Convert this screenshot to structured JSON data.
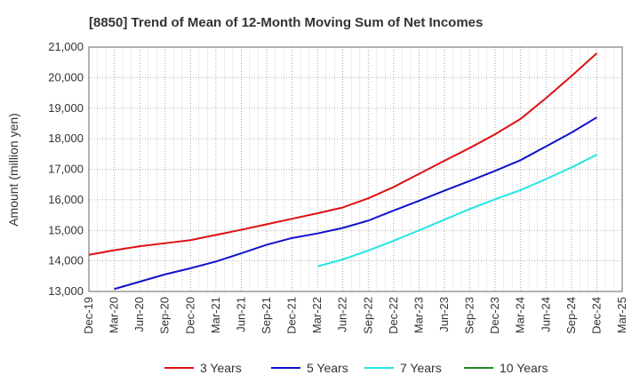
{
  "chart_data": {
    "type": "line",
    "title": "[8850]  Trend of Mean of 12-Month Moving Sum of Net Incomes",
    "xlabel": "",
    "ylabel": "Amount (million yen)",
    "ylim": [
      13000,
      21000
    ],
    "yticks": [
      13000,
      14000,
      15000,
      16000,
      17000,
      18000,
      19000,
      20000,
      21000
    ],
    "ytick_labels": [
      "13,000",
      "14,000",
      "15,000",
      "16,000",
      "17,000",
      "18,000",
      "19,000",
      "20,000",
      "21,000"
    ],
    "x_ticks": [
      "Dec-19",
      "Mar-20",
      "Jun-20",
      "Sep-20",
      "Dec-20",
      "Mar-21",
      "Jun-21",
      "Sep-21",
      "Dec-21",
      "Mar-22",
      "Jun-22",
      "Sep-22",
      "Dec-22",
      "Mar-23",
      "Jun-23",
      "Sep-23",
      "Dec-23",
      "Mar-24",
      "Jun-24",
      "Sep-24",
      "Dec-24",
      "Mar-25"
    ],
    "grid": true,
    "legend_position": "bottom",
    "series": [
      {
        "name": "3 Years",
        "color": "#dd1111",
        "points": [
          [
            "Dec-19",
            14200
          ],
          [
            "Mar-20",
            14350
          ],
          [
            "Jun-20",
            14480
          ],
          [
            "Sep-20",
            14580
          ],
          [
            "Dec-20",
            14680
          ],
          [
            "Mar-21",
            14850
          ],
          [
            "Jun-21",
            15020
          ],
          [
            "Sep-21",
            15200
          ],
          [
            "Dec-21",
            15380
          ],
          [
            "Mar-22",
            15560
          ],
          [
            "Jun-22",
            15750
          ],
          [
            "Sep-22",
            16050
          ],
          [
            "Dec-22",
            16420
          ],
          [
            "Mar-23",
            16850
          ],
          [
            "Jun-23",
            17280
          ],
          [
            "Sep-23",
            17700
          ],
          [
            "Dec-23",
            18150
          ],
          [
            "Mar-24",
            18650
          ],
          [
            "Jun-24",
            19330
          ],
          [
            "Sep-24",
            20050
          ],
          [
            "Dec-24",
            20800
          ]
        ]
      },
      {
        "name": "5 Years",
        "color": "#1111cc",
        "points": [
          [
            "Mar-20",
            13080
          ],
          [
            "Jun-20",
            13320
          ],
          [
            "Sep-20",
            13560
          ],
          [
            "Dec-20",
            13760
          ],
          [
            "Mar-21",
            13980
          ],
          [
            "Jun-21",
            14250
          ],
          [
            "Sep-21",
            14530
          ],
          [
            "Dec-21",
            14750
          ],
          [
            "Mar-22",
            14900
          ],
          [
            "Jun-22",
            15080
          ],
          [
            "Sep-22",
            15320
          ],
          [
            "Dec-22",
            15650
          ],
          [
            "Mar-23",
            15970
          ],
          [
            "Jun-23",
            16300
          ],
          [
            "Sep-23",
            16620
          ],
          [
            "Dec-23",
            16950
          ],
          [
            "Mar-24",
            17300
          ],
          [
            "Jun-24",
            17750
          ],
          [
            "Sep-24",
            18200
          ],
          [
            "Dec-24",
            18700
          ]
        ]
      },
      {
        "name": "7 Years",
        "color": "#22e5e5",
        "points": [
          [
            "Mar-22",
            13820
          ],
          [
            "Jun-22",
            14050
          ],
          [
            "Sep-22",
            14340
          ],
          [
            "Dec-22",
            14660
          ],
          [
            "Mar-23",
            15000
          ],
          [
            "Jun-23",
            15350
          ],
          [
            "Sep-23",
            15700
          ],
          [
            "Dec-23",
            16020
          ],
          [
            "Mar-24",
            16320
          ],
          [
            "Jun-24",
            16680
          ],
          [
            "Sep-24",
            17060
          ],
          [
            "Dec-24",
            17480
          ]
        ]
      },
      {
        "name": "10 Years",
        "color": "#228822",
        "points": []
      }
    ]
  }
}
